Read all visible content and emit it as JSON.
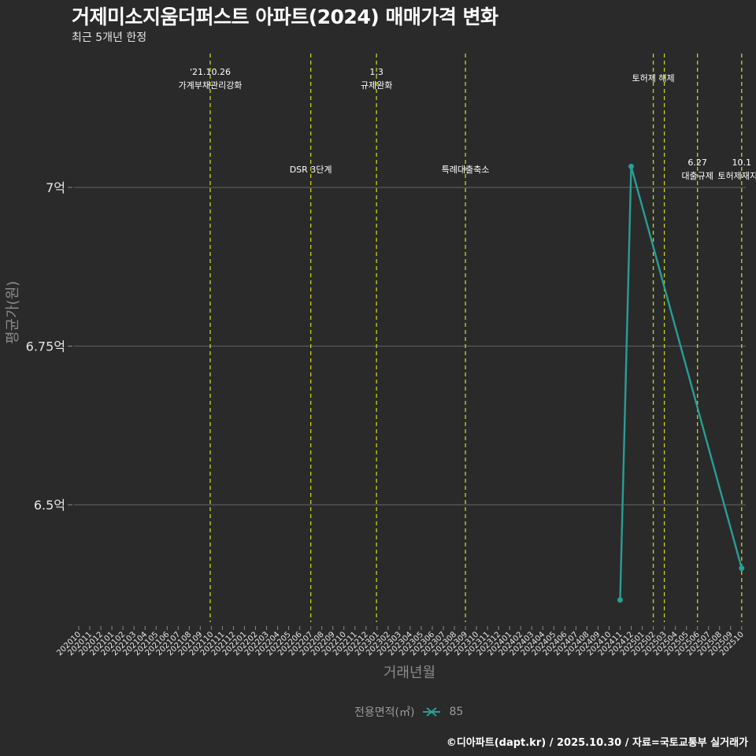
{
  "header": {
    "title": "거제미소지움더퍼스트 아파트(2024) 매매가격 변화",
    "subtitle": "최근 5개년 한정"
  },
  "axes": {
    "x_title": "거래년월",
    "y_title": "평균가(원)"
  },
  "legend": {
    "title": "전용면적(㎡)",
    "items": [
      {
        "label": "85",
        "color": "#2a9d94"
      }
    ]
  },
  "footer": {
    "credit": "©디아파트(dapt.kr) / 2025.10.30 / 자료=국토교통부 실거래가"
  },
  "colors": {
    "background": "#2a2a2b",
    "grid": "#5a5a5a",
    "series": "#2a9d94",
    "event_line": "#c8d41c",
    "annotation_text": "#ffffff"
  },
  "chart_data": {
    "type": "line",
    "title": "거제미소지움더퍼스트 아파트(2024) 매매가격 변화",
    "subtitle": "최근 5개년 한정",
    "xlabel": "거래년월",
    "ylabel": "평균가(원)",
    "x_ticks": [
      "202010",
      "202011",
      "202012",
      "202101",
      "202102",
      "202103",
      "202104",
      "202105",
      "202106",
      "202107",
      "202108",
      "202109",
      "202110",
      "202111",
      "202112",
      "202201",
      "202202",
      "202203",
      "202204",
      "202205",
      "202206",
      "202207",
      "202208",
      "202209",
      "202210",
      "202211",
      "202212",
      "202301",
      "202302",
      "202303",
      "202304",
      "202305",
      "202306",
      "202307",
      "202308",
      "202309",
      "202310",
      "202311",
      "202312",
      "202401",
      "202402",
      "202403",
      "202404",
      "202405",
      "202406",
      "202407",
      "202408",
      "202409",
      "202410",
      "202411",
      "202412",
      "202501",
      "202502",
      "202503",
      "202504",
      "202505",
      "202506",
      "202507",
      "202508",
      "202509",
      "202510"
    ],
    "y_ticks": [
      {
        "value": 6.5,
        "label": "6.5억"
      },
      {
        "value": 6.75,
        "label": "6.75억"
      },
      {
        "value": 7.0,
        "label": "7억"
      }
    ],
    "ylim": [
      6.27,
      7.2
    ],
    "grid": true,
    "legend_position": "bottom",
    "series": [
      {
        "name": "85",
        "x": [
          "202411",
          "202412",
          "202510"
        ],
        "values": [
          6.35,
          7.033,
          6.4
        ]
      }
    ],
    "events": [
      {
        "month_index": 11.9,
        "line1": "'21.10.26",
        "line2": "가계부채관리강화",
        "row": "top"
      },
      {
        "month_index": 21.0,
        "line1": "",
        "line2": "DSR 3단계",
        "row": "mid"
      },
      {
        "month_index": 26.95,
        "line1": "1.3",
        "line2": "규제완화",
        "row": "top"
      },
      {
        "month_index": 35.0,
        "line1": "",
        "line2": "특례대출축소",
        "row": "mid"
      },
      {
        "month_index": 52.0,
        "line1": "",
        "line2": "토허제 해제",
        "row": "top2"
      },
      {
        "month_index": 53.0,
        "line1": "",
        "line2": "",
        "row": "none"
      },
      {
        "month_index": 56.0,
        "line1": "6.27",
        "line2": "대출규제",
        "row": "mid"
      },
      {
        "month_index": 60.0,
        "line1": "10.1",
        "line2": "토허제재지정",
        "row": "mid"
      }
    ]
  }
}
